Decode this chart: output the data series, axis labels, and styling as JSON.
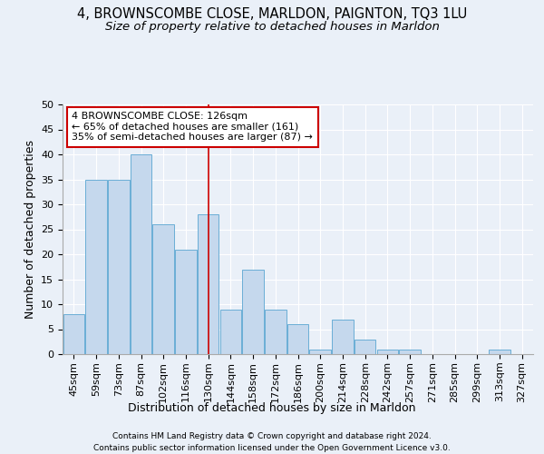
{
  "title": "4, BROWNSCOMBE CLOSE, MARLDON, PAIGNTON, TQ3 1LU",
  "subtitle": "Size of property relative to detached houses in Marldon",
  "xlabel": "Distribution of detached houses by size in Marldon",
  "ylabel": "Number of detached properties",
  "footer_line1": "Contains HM Land Registry data © Crown copyright and database right 2024.",
  "footer_line2": "Contains public sector information licensed under the Open Government Licence v3.0.",
  "categories": [
    "45sqm",
    "59sqm",
    "73sqm",
    "87sqm",
    "102sqm",
    "116sqm",
    "130sqm",
    "144sqm",
    "158sqm",
    "172sqm",
    "186sqm",
    "200sqm",
    "214sqm",
    "228sqm",
    "242sqm",
    "257sqm",
    "271sqm",
    "285sqm",
    "299sqm",
    "313sqm",
    "327sqm"
  ],
  "values": [
    8,
    35,
    35,
    40,
    26,
    21,
    28,
    9,
    17,
    9,
    6,
    1,
    7,
    3,
    1,
    1,
    0,
    0,
    0,
    1,
    0
  ],
  "bar_color": "#c5d8ed",
  "bar_edge_color": "#6aaed6",
  "vline_x": 6,
  "annotation_line1": "4 BROWNSCOMBE CLOSE: 126sqm",
  "annotation_line2": "← 65% of detached houses are smaller (161)",
  "annotation_line3": "35% of semi-detached houses are larger (87) →",
  "annotation_box_color": "#ffffff",
  "annotation_box_edge": "#cc0000",
  "vline_color": "#cc0000",
  "ylim": [
    0,
    50
  ],
  "yticks": [
    0,
    5,
    10,
    15,
    20,
    25,
    30,
    35,
    40,
    45,
    50
  ],
  "background_color": "#eaf0f8",
  "grid_color": "#ffffff",
  "title_fontsize": 10.5,
  "subtitle_fontsize": 9.5,
  "axis_label_fontsize": 9,
  "tick_fontsize": 8,
  "annot_fontsize": 8,
  "footer_fontsize": 6.5
}
